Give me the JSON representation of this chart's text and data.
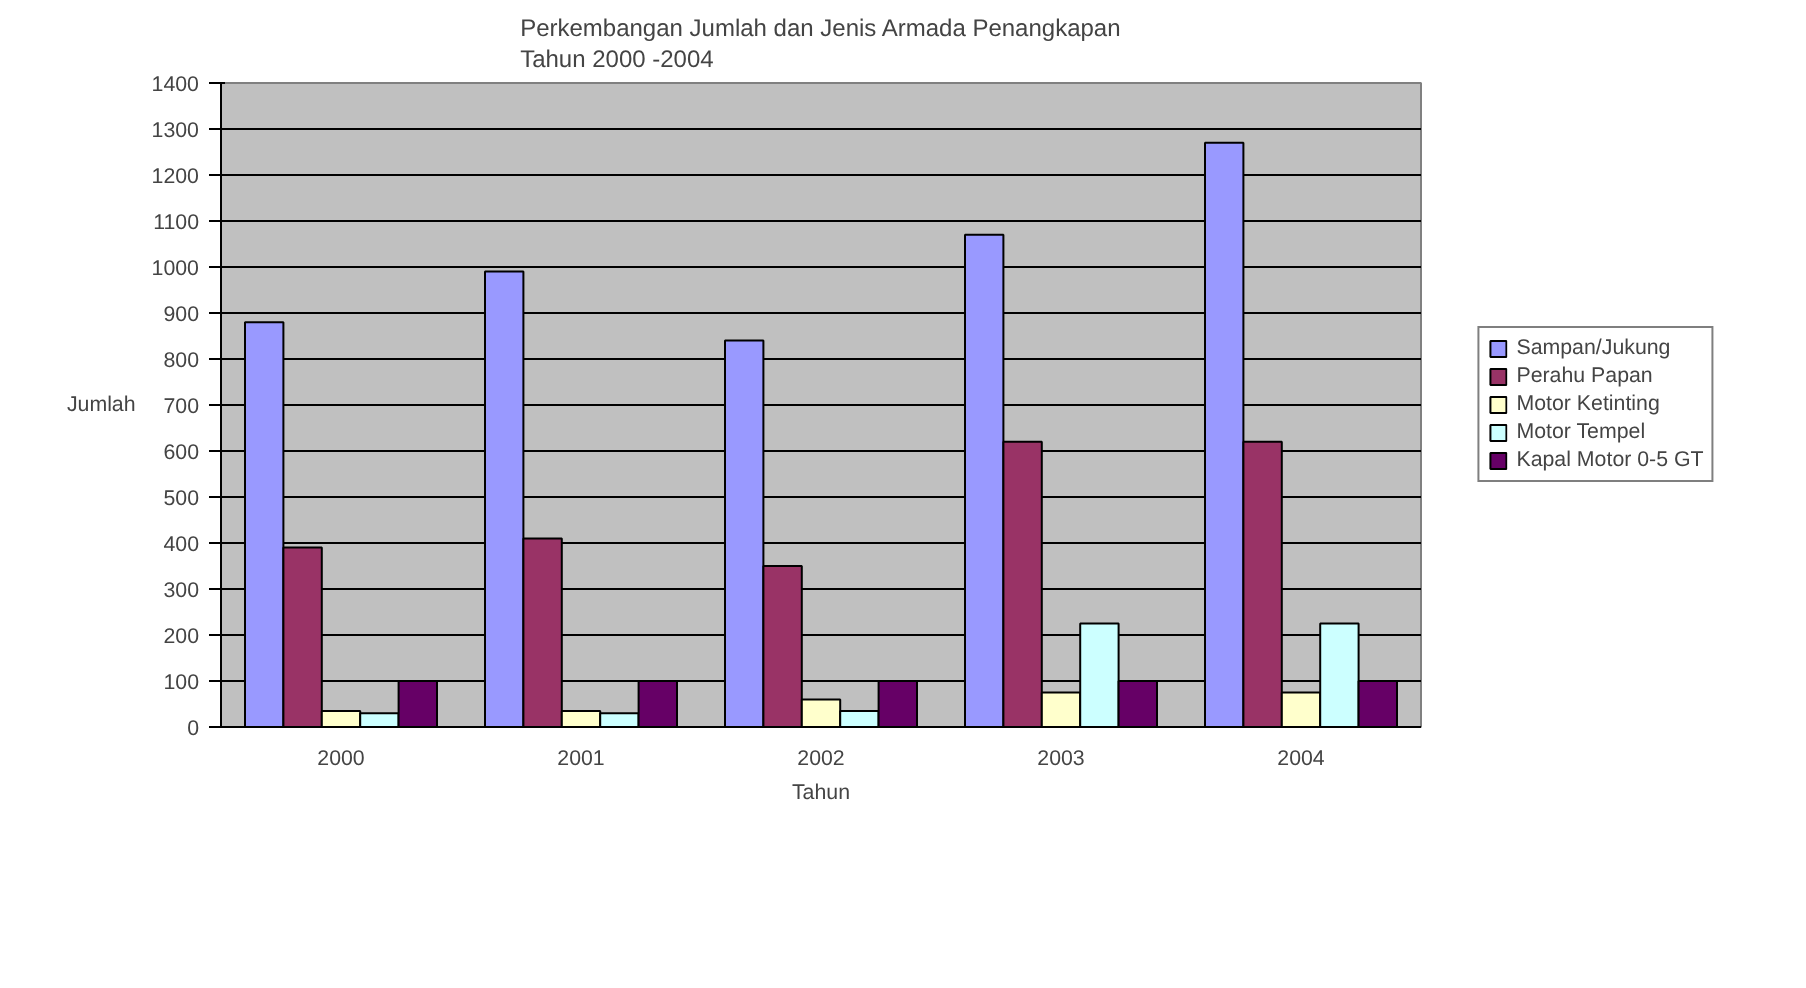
{
  "chart_data": {
    "type": "bar",
    "title": "Perkembangan Jumlah dan Jenis Armada Penangkapan\nTahun 2000 -2004",
    "xlabel": "Tahun",
    "ylabel": "Jumlah",
    "categories": [
      "2000",
      "2001",
      "2002",
      "2003",
      "2004"
    ],
    "series": [
      {
        "name": "Sampan/Jukung",
        "color": "#9999ff",
        "values": [
          880,
          990,
          840,
          1070,
          1270
        ]
      },
      {
        "name": "Perahu Papan",
        "color": "#993366",
        "values": [
          390,
          410,
          350,
          620,
          620
        ]
      },
      {
        "name": "Motor Ketinting",
        "color": "#ffffcc",
        "values": [
          35,
          35,
          60,
          75,
          75
        ]
      },
      {
        "name": "Motor Tempel",
        "color": "#ccffff",
        "values": [
          30,
          30,
          35,
          225,
          225
        ]
      },
      {
        "name": "Kapal Motor 0-5 GT",
        "color": "#660066",
        "values": [
          100,
          100,
          100,
          100,
          100
        ]
      }
    ],
    "ylim": [
      0,
      1400
    ],
    "yticks": [
      0,
      100,
      200,
      300,
      400,
      500,
      600,
      700,
      800,
      900,
      1000,
      1100,
      1200,
      1300,
      1400
    ],
    "grid": "y",
    "legend": "right"
  }
}
